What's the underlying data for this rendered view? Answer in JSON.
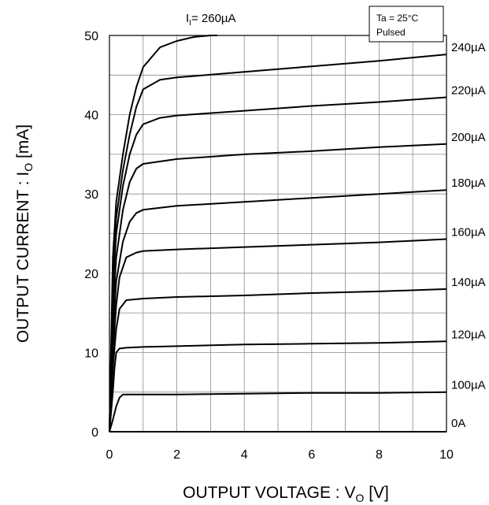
{
  "chart_data": {
    "type": "line",
    "title": "",
    "xlabel": {
      "main": "OUTPUT VOLTAGE : V",
      "sub": "O",
      "unit": " [V]"
    },
    "ylabel": {
      "main": "OUTPUT CURRENT : I",
      "sub": "O",
      "unit": " [mA]"
    },
    "xlim": [
      0,
      10
    ],
    "ylim": [
      0,
      50
    ],
    "x_ticks": [
      "0",
      "2",
      "4",
      "6",
      "8",
      "10"
    ],
    "y_ticks": [
      "0",
      "10",
      "20",
      "30",
      "40",
      "50"
    ],
    "x_grid_step": 1,
    "y_grid_step": 5,
    "grid": true,
    "annotation": {
      "line1": "Ta = 25°C",
      "line2": "Pulsed"
    },
    "top_label": {
      "main": "I",
      "sub": "I",
      "rest": "= 260µA"
    },
    "series": [
      {
        "name": "0A",
        "points": [
          [
            0,
            0
          ],
          [
            10,
            0
          ]
        ]
      },
      {
        "name": "100µA",
        "points": [
          [
            0,
            0
          ],
          [
            0.1,
            1.5
          ],
          [
            0.2,
            3.2
          ],
          [
            0.3,
            4.3
          ],
          [
            0.4,
            4.7
          ],
          [
            1,
            4.7
          ],
          [
            2,
            4.7
          ],
          [
            4,
            4.8
          ],
          [
            6,
            4.9
          ],
          [
            8,
            4.9
          ],
          [
            10,
            5.0
          ]
        ]
      },
      {
        "name": "120µA",
        "points": [
          [
            0,
            0
          ],
          [
            0.1,
            5
          ],
          [
            0.15,
            8
          ],
          [
            0.2,
            10
          ],
          [
            0.3,
            10.5
          ],
          [
            0.5,
            10.6
          ],
          [
            1,
            10.7
          ],
          [
            2,
            10.8
          ],
          [
            4,
            11.0
          ],
          [
            6,
            11.1
          ],
          [
            8,
            11.2
          ],
          [
            10,
            11.4
          ]
        ]
      },
      {
        "name": "140µA",
        "points": [
          [
            0,
            0
          ],
          [
            0.1,
            8
          ],
          [
            0.2,
            13
          ],
          [
            0.3,
            15.5
          ],
          [
            0.5,
            16.6
          ],
          [
            1,
            16.8
          ],
          [
            2,
            17.0
          ],
          [
            4,
            17.2
          ],
          [
            6,
            17.5
          ],
          [
            8,
            17.7
          ],
          [
            10,
            18.0
          ]
        ]
      },
      {
        "name": "160µA",
        "points": [
          [
            0,
            0
          ],
          [
            0.1,
            10
          ],
          [
            0.2,
            16
          ],
          [
            0.3,
            19.5
          ],
          [
            0.5,
            22
          ],
          [
            0.8,
            22.6
          ],
          [
            1,
            22.8
          ],
          [
            2,
            23.0
          ],
          [
            4,
            23.3
          ],
          [
            6,
            23.6
          ],
          [
            8,
            23.9
          ],
          [
            10,
            24.3
          ]
        ]
      },
      {
        "name": "180µA",
        "points": [
          [
            0,
            0
          ],
          [
            0.1,
            12
          ],
          [
            0.2,
            19
          ],
          [
            0.4,
            24
          ],
          [
            0.6,
            26.5
          ],
          [
            0.8,
            27.6
          ],
          [
            1,
            28.0
          ],
          [
            2,
            28.5
          ],
          [
            4,
            29.0
          ],
          [
            6,
            29.5
          ],
          [
            8,
            30.0
          ],
          [
            10,
            30.5
          ]
        ]
      },
      {
        "name": "200µA",
        "points": [
          [
            0,
            0
          ],
          [
            0.1,
            15
          ],
          [
            0.2,
            22
          ],
          [
            0.4,
            28
          ],
          [
            0.6,
            31.5
          ],
          [
            0.8,
            33.2
          ],
          [
            1,
            33.8
          ],
          [
            2,
            34.4
          ],
          [
            4,
            35.0
          ],
          [
            6,
            35.4
          ],
          [
            8,
            35.9
          ],
          [
            10,
            36.3
          ]
        ]
      },
      {
        "name": "220µA",
        "points": [
          [
            0,
            0
          ],
          [
            0.1,
            18
          ],
          [
            0.2,
            25
          ],
          [
            0.4,
            31
          ],
          [
            0.6,
            35
          ],
          [
            0.8,
            37.5
          ],
          [
            1,
            38.8
          ],
          [
            1.5,
            39.6
          ],
          [
            2,
            39.9
          ],
          [
            4,
            40.5
          ],
          [
            6,
            41.1
          ],
          [
            8,
            41.6
          ],
          [
            10,
            42.2
          ]
        ]
      },
      {
        "name": "240µA",
        "points": [
          [
            0,
            0
          ],
          [
            0.1,
            20
          ],
          [
            0.2,
            27
          ],
          [
            0.4,
            33
          ],
          [
            0.6,
            37.5
          ],
          [
            0.8,
            41
          ],
          [
            1,
            43.2
          ],
          [
            1.5,
            44.4
          ],
          [
            2,
            44.7
          ],
          [
            4,
            45.4
          ],
          [
            6,
            46.1
          ],
          [
            8,
            46.8
          ],
          [
            10,
            47.6
          ]
        ]
      },
      {
        "name": "260µA",
        "points": [
          [
            0,
            0
          ],
          [
            0.1,
            22
          ],
          [
            0.2,
            29
          ],
          [
            0.4,
            35
          ],
          [
            0.6,
            40
          ],
          [
            0.8,
            43.5
          ],
          [
            1,
            46
          ],
          [
            1.5,
            48.5
          ],
          [
            2,
            49.3
          ],
          [
            2.5,
            49.8
          ],
          [
            3,
            50.0
          ],
          [
            3.2,
            50.0
          ]
        ]
      }
    ]
  }
}
